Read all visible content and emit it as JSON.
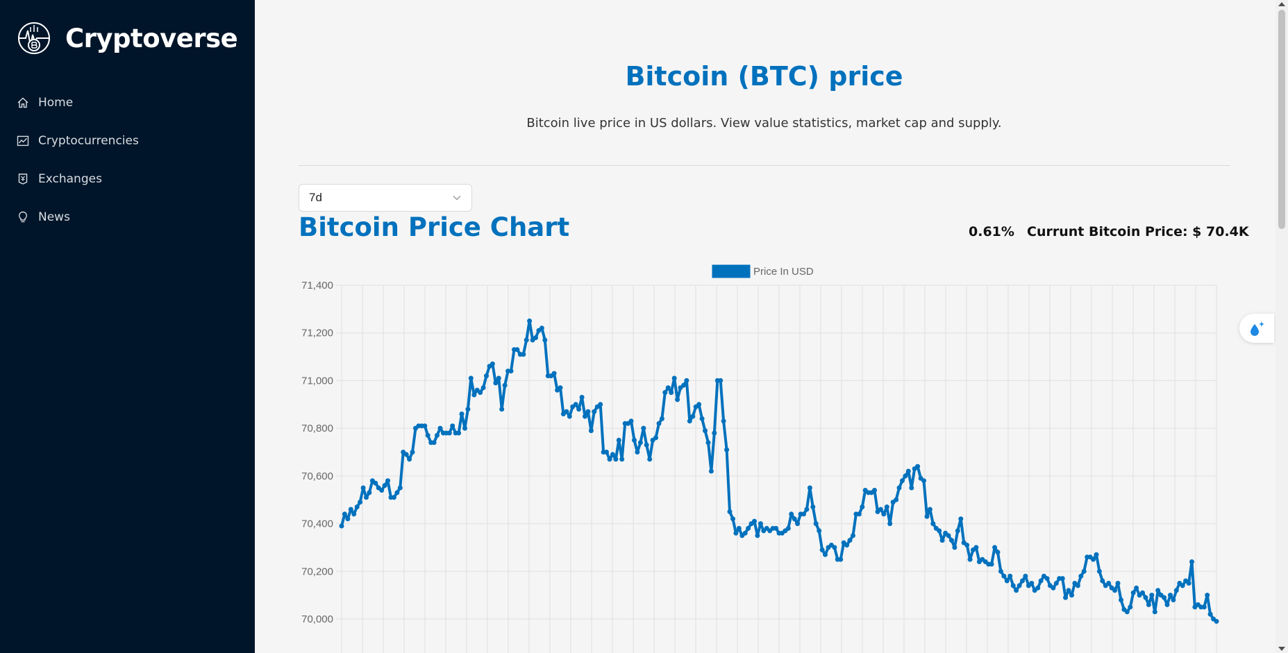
{
  "brand": {
    "name": "Cryptoverse",
    "logo_icon": "crypto-globe-icon"
  },
  "menu": [
    {
      "label": "Home",
      "icon": "home-icon"
    },
    {
      "label": "Cryptocurrencies",
      "icon": "fund-icon"
    },
    {
      "label": "Exchanges",
      "icon": "money-collect-icon"
    },
    {
      "label": "News",
      "icon": "bulb-icon"
    }
  ],
  "page": {
    "title": "Bitcoin (BTC) price",
    "subtitle": "Bitcoin live price in US dollars. View value statistics, market cap and supply."
  },
  "period_select": {
    "value": "7d"
  },
  "chart_header": {
    "title": "Bitcoin Price Chart",
    "change": "0.61%",
    "current_price": "Currunt Bitcoin Price: $ 70.4K"
  },
  "colors": {
    "sidebar": "#001529",
    "accent": "#0071bd",
    "background": "#f5f5f5"
  },
  "chart_data": {
    "type": "line",
    "legend": "Price In USD",
    "legend_position": "top",
    "grid": true,
    "ylim": [
      70000,
      71400
    ],
    "y_ticks": [
      "71,400",
      "71,200",
      "71,000",
      "70,800",
      "70,600",
      "70,400",
      "70,200",
      "70,000"
    ],
    "series": [
      {
        "name": "Price In USD",
        "values": [
          70390,
          70440,
          70420,
          70460,
          70440,
          70470,
          70490,
          70550,
          70510,
          70530,
          70580,
          70570,
          70550,
          70540,
          70560,
          70580,
          70510,
          70510,
          70530,
          70550,
          70700,
          70690,
          70670,
          70700,
          70800,
          70810,
          70810,
          70810,
          70770,
          70740,
          70740,
          70770,
          70800,
          70780,
          70780,
          70780,
          70810,
          70780,
          70780,
          70860,
          70800,
          70880,
          71010,
          70940,
          70960,
          70950,
          70970,
          71020,
          71060,
          71070,
          70990,
          71010,
          70880,
          70980,
          71040,
          71040,
          71130,
          71130,
          71110,
          71110,
          71170,
          71250,
          71170,
          71180,
          71210,
          71220,
          71170,
          71020,
          71020,
          71030,
          70960,
          70970,
          70860,
          70870,
          70850,
          70890,
          70900,
          70880,
          70930,
          70850,
          70870,
          70790,
          70870,
          70890,
          70900,
          70700,
          70700,
          70670,
          70690,
          70670,
          70750,
          70670,
          70820,
          70820,
          70830,
          70750,
          70700,
          70740,
          70800,
          70730,
          70670,
          70750,
          70760,
          70820,
          70840,
          70950,
          70970,
          70950,
          71010,
          70920,
          70970,
          70980,
          71000,
          70830,
          70850,
          70890,
          70900,
          70840,
          70790,
          70740,
          70620,
          70780,
          71000,
          71000,
          70830,
          70710,
          70450,
          70420,
          70360,
          70380,
          70350,
          70360,
          70380,
          70400,
          70410,
          70350,
          70400,
          70370,
          70380,
          70370,
          70380,
          70380,
          70360,
          70360,
          70370,
          70380,
          70440,
          70420,
          70400,
          70440,
          70440,
          70460,
          70550,
          70470,
          70400,
          70370,
          70290,
          70270,
          70300,
          70310,
          70300,
          70250,
          70250,
          70320,
          70310,
          70330,
          70350,
          70440,
          70440,
          70470,
          70540,
          70530,
          70530,
          70540,
          70450,
          70460,
          70440,
          70470,
          70400,
          70490,
          70500,
          70550,
          70580,
          70600,
          70620,
          70550,
          70630,
          70640,
          70590,
          70580,
          70430,
          70460,
          70400,
          70380,
          70370,
          70330,
          70360,
          70350,
          70330,
          70300,
          70370,
          70420,
          70320,
          70310,
          70250,
          70290,
          70300,
          70240,
          70250,
          70240,
          70230,
          70230,
          70300,
          70280,
          70200,
          70180,
          70160,
          70180,
          70140,
          70120,
          70140,
          70160,
          70180,
          70140,
          70150,
          70120,
          70130,
          70160,
          70180,
          70170,
          70140,
          70130,
          70150,
          70170,
          70170,
          70090,
          70120,
          70100,
          70150,
          70140,
          70180,
          70200,
          70260,
          70260,
          70250,
          70270,
          70200,
          70160,
          70140,
          70150,
          70130,
          70120,
          70150,
          70080,
          70040,
          70030,
          70050,
          70110,
          70130,
          70100,
          70110,
          70090,
          70060,
          70100,
          70030,
          70120,
          70100,
          70090,
          70060,
          70100,
          70080,
          70120,
          70150,
          70140,
          70160,
          70150,
          70240,
          70050,
          70060,
          70050,
          70050,
          70100,
          70020,
          70000,
          69990
        ]
      }
    ]
  }
}
